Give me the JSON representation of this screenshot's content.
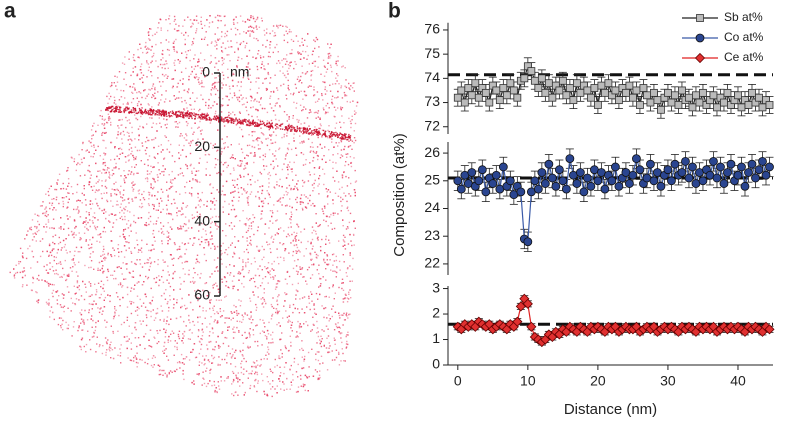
{
  "chart_data": [
    {
      "type": "reconstruction",
      "panel": "a",
      "unit": "nm",
      "ylim": [
        0,
        60
      ],
      "yticks": [
        0,
        20,
        40,
        60
      ]
    },
    {
      "type": "stacked_line",
      "panel": "b",
      "xlabel": "Distance (nm)",
      "ylabel": "Composition (at%)",
      "legend": "top right",
      "xlim": [
        -1.4,
        45
      ],
      "xticks": [
        0,
        10,
        20,
        30,
        40
      ],
      "x": [
        0,
        0.5,
        1,
        1.5,
        2,
        2.5,
        3,
        3.5,
        4,
        4.5,
        5,
        5.5,
        6,
        6.5,
        7,
        7.5,
        8,
        8.5,
        9,
        9.5,
        10,
        10.5,
        11,
        11.5,
        12,
        12.5,
        13,
        13.5,
        14,
        14.5,
        15,
        15.5,
        16,
        16.5,
        17,
        17.5,
        18,
        18.5,
        19,
        19.5,
        20,
        20.5,
        21,
        21.5,
        22,
        22.5,
        23,
        23.5,
        24,
        24.5,
        25,
        25.5,
        26,
        26.5,
        27,
        27.5,
        28,
        28.5,
        29,
        29.5,
        30,
        30.5,
        31,
        31.5,
        32,
        32.5,
        33,
        33.5,
        34,
        34.5,
        35,
        35.5,
        36,
        36.5,
        37,
        37.5,
        38,
        38.5,
        39,
        39.5,
        40,
        40.5,
        41,
        41.5,
        42,
        42.5,
        43,
        43.5,
        44,
        44.5
      ],
      "panels": [
        {
          "ylim": [
            71.7,
            76.3
          ],
          "yticks": [
            72,
            73,
            74,
            75,
            76
          ],
          "reference": 74.15,
          "series": [
            {
              "name": "Sb at%",
              "color": "#222222",
              "marker": "square",
              "marker_color": "#bbbbbb",
              "error": 0.35,
              "values": [
                73.2,
                73.5,
                73.0,
                73.6,
                73.3,
                73.8,
                73.2,
                73.6,
                73.4,
                73.0,
                73.7,
                73.5,
                73.1,
                73.6,
                73.3,
                73.8,
                73.5,
                73.2,
                73.9,
                74.0,
                74.5,
                74.3,
                73.9,
                73.6,
                74.0,
                73.4,
                73.8,
                73.2,
                73.7,
                73.5,
                73.9,
                73.3,
                73.6,
                73.1,
                73.8,
                73.4,
                73.7,
                73.5,
                73.2,
                73.6,
                72.9,
                73.7,
                73.4,
                73.8,
                73.3,
                73.5,
                73.1,
                73.6,
                73.4,
                73.7,
                73.2,
                73.5,
                72.9,
                73.6,
                73.3,
                73.0,
                73.4,
                73.1,
                72.7,
                73.2,
                73.4,
                73.0,
                73.3,
                72.9,
                73.5,
                73.1,
                73.2,
                72.8,
                73.3,
                73.0,
                73.4,
                72.9,
                73.1,
                73.3,
                72.8,
                73.2,
                73.0,
                73.4,
                72.9,
                73.1,
                73.3,
                72.8,
                73.1,
                72.9,
                73.4,
                73.0,
                73.2,
                72.8,
                73.1,
                72.9
              ]
            }
          ]
        },
        {
          "ylim": [
            21.6,
            26.4
          ],
          "yticks": [
            22,
            23,
            24,
            25,
            26
          ],
          "reference": 25.1,
          "series": [
            {
              "name": "Co at%",
              "color": "#3a5aa8",
              "marker": "circle",
              "marker_color": "#2a4590",
              "error": 0.35,
              "values": [
                25.0,
                24.7,
                25.2,
                24.9,
                25.3,
                24.8,
                25.0,
                25.4,
                24.6,
                25.1,
                24.9,
                25.2,
                24.7,
                25.5,
                24.8,
                25.0,
                24.5,
                24.8,
                24.6,
                22.9,
                22.8,
                24.6,
                25.0,
                24.7,
                25.3,
                24.9,
                25.6,
                25.1,
                24.8,
                25.4,
                25.0,
                24.7,
                25.8,
                25.2,
                24.9,
                25.3,
                24.6,
                25.1,
                24.8,
                25.4,
                25.0,
                25.3,
                24.7,
                25.2,
                25.0,
                25.5,
                24.8,
                25.1,
                25.3,
                24.9,
                25.2,
                25.8,
                25.4,
                24.9,
                25.1,
                25.6,
                25.0,
                25.3,
                24.8,
                25.2,
                25.4,
                25.0,
                25.6,
                25.2,
                25.3,
                25.7,
                25.1,
                25.5,
                24.9,
                25.3,
                25.0,
                25.4,
                25.2,
                25.7,
                25.1,
                25.5,
                24.9,
                25.3,
                25.6,
                25.0,
                25.2,
                25.5,
                24.8,
                25.3,
                25.6,
                25.1,
                25.4,
                25.7,
                25.2,
                25.5
              ]
            }
          ]
        },
        {
          "ylim": [
            0,
            3.1
          ],
          "yticks": [
            0,
            1,
            2,
            3
          ],
          "reference": 1.6,
          "series": [
            {
              "name": "Ce at%",
              "color": "#e02020",
              "marker": "diamond",
              "marker_color": "#e03030",
              "error": 0.12,
              "values": [
                1.5,
                1.4,
                1.6,
                1.5,
                1.6,
                1.5,
                1.7,
                1.6,
                1.5,
                1.6,
                1.4,
                1.5,
                1.6,
                1.5,
                1.4,
                1.6,
                1.5,
                1.7,
                2.3,
                2.6,
                2.4,
                1.5,
                1.1,
                1.0,
                0.9,
                1.0,
                1.2,
                1.1,
                1.3,
                1.2,
                1.4,
                1.3,
                1.5,
                1.4,
                1.3,
                1.5,
                1.4,
                1.3,
                1.5,
                1.4,
                1.5,
                1.4,
                1.3,
                1.5,
                1.4,
                1.5,
                1.3,
                1.4,
                1.5,
                1.4,
                1.4,
                1.5,
                1.3,
                1.4,
                1.5,
                1.4,
                1.5,
                1.3,
                1.4,
                1.5,
                1.4,
                1.5,
                1.4,
                1.3,
                1.5,
                1.4,
                1.5,
                1.4,
                1.3,
                1.5,
                1.4,
                1.5,
                1.4,
                1.5,
                1.3,
                1.4,
                1.5,
                1.4,
                1.5,
                1.4,
                1.5,
                1.4,
                1.3,
                1.5,
                1.4,
                1.5,
                1.4,
                1.3,
                1.5,
                1.4
              ]
            }
          ]
        }
      ]
    }
  ]
}
